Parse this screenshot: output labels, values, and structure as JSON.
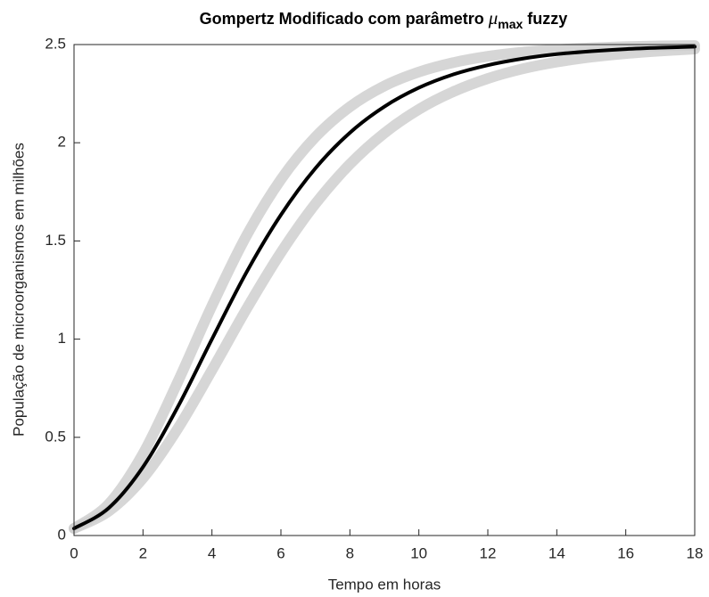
{
  "chart_data": {
    "type": "line",
    "title": [
      "Gompertz Modificado com parâmetro ",
      "μ",
      "max",
      " fuzzy"
    ],
    "xlabel": "Tempo em horas",
    "ylabel": "População de microorganismos em milhões",
    "x": [
      0,
      1,
      2,
      3,
      4,
      5,
      6,
      7,
      8,
      9,
      10,
      11,
      12,
      13,
      14,
      15,
      16,
      17,
      18
    ],
    "series": [
      {
        "color": "#cfcfcf",
        "values": [
          0.036,
          0.123,
          0.292,
          0.542,
          0.842,
          1.153,
          1.441,
          1.689,
          1.891,
          2.049,
          2.17,
          2.26,
          2.327,
          2.376,
          2.411,
          2.436,
          2.454,
          2.467,
          2.477
        ]
      },
      {
        "color": "#cfcfcf",
        "values": [
          0.036,
          0.159,
          0.416,
          0.779,
          1.17,
          1.526,
          1.813,
          2.029,
          2.183,
          2.289,
          2.36,
          2.408,
          2.44,
          2.461,
          2.474,
          2.483,
          2.489,
          2.493,
          2.495
        ]
      },
      {
        "color": "#000000",
        "values": [
          0.036,
          0.139,
          0.349,
          0.652,
          1.0,
          1.34,
          1.633,
          1.87,
          2.051,
          2.184,
          2.28,
          2.348,
          2.395,
          2.428,
          2.451,
          2.466,
          2.477,
          2.484,
          2.489
        ]
      }
    ],
    "xlim": [
      0,
      18
    ],
    "xticks": [
      0,
      2,
      4,
      6,
      8,
      10,
      12,
      14,
      16,
      18
    ],
    "ylim": [
      0,
      2.5
    ],
    "yticks": [
      0,
      0.5,
      1,
      1.5,
      2,
      2.5
    ],
    "grid": false
  }
}
